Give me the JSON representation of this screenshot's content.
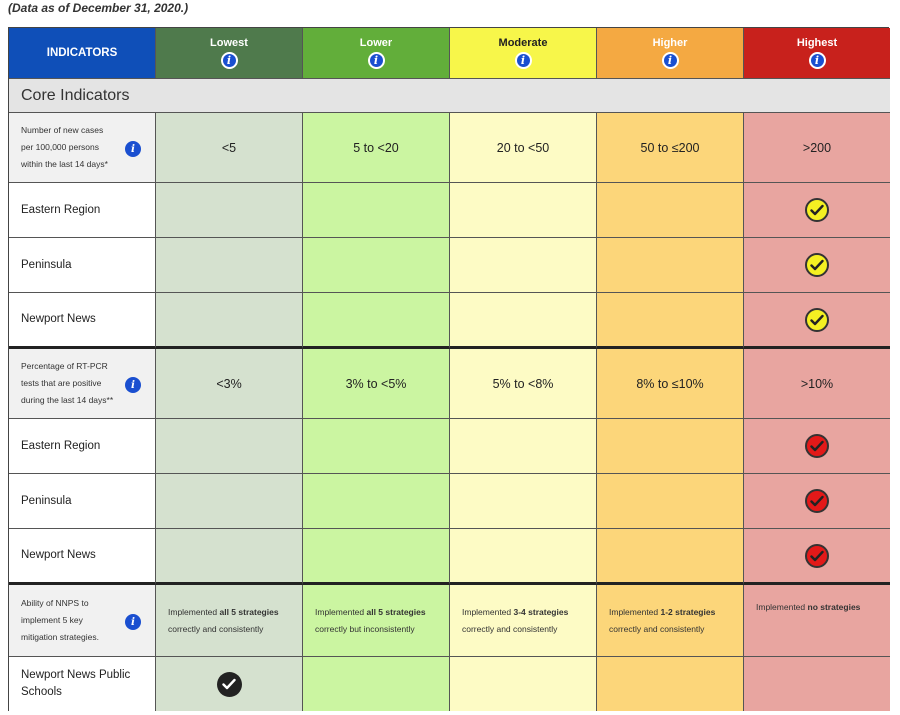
{
  "caption": "(Data as of December 31, 2020.)",
  "header": {
    "indicators": "INDICATORS",
    "levels": [
      "Lowest",
      "Lower",
      "Moderate",
      "Higher",
      "Highest"
    ],
    "info_symbol": "i"
  },
  "section_title": "Core Indicators",
  "indicator1": {
    "label_lines": [
      "Number of new cases",
      "per 100,000 persons",
      "within the last 14 days*"
    ],
    "thresholds": [
      "<5",
      "5 to <20",
      "20 to <50",
      "50 to ≤200",
      ">200"
    ]
  },
  "indicator1_regions": [
    "Eastern Region",
    "Peninsula",
    "Newport News"
  ],
  "indicator2": {
    "label_lines": [
      "Percentage of RT-PCR",
      "tests that are positive",
      "during the last 14 days**"
    ],
    "thresholds": [
      "<3%",
      "3% to <5%",
      "5% to <8%",
      "8% to ≤10%",
      ">10%"
    ]
  },
  "indicator2_regions": [
    "Eastern Region",
    "Peninsula",
    "Newport News"
  ],
  "indicator3": {
    "label_lines": [
      "Ability of NNPS to",
      "implement 5 key",
      "mitigation strategies."
    ],
    "strategies": [
      {
        "pre": "Implemented ",
        "bold": "all 5 strategies",
        "line2": "correctly and consistently"
      },
      {
        "pre": "Implemented ",
        "bold": "all 5 strategies",
        "line2": "correctly but inconsistently"
      },
      {
        "pre": "Implemented ",
        "bold": "3-4 strategies",
        "line2": "correctly and consistently"
      },
      {
        "pre": "Implemented ",
        "bold": "1-2 strategies",
        "line2": "correctly and consistently"
      },
      {
        "pre": "Implemented ",
        "bold": "no strategies",
        "line2": ""
      }
    ]
  },
  "indicator3_region_lines": [
    "Newport News Public",
    "Schools"
  ],
  "colors": {
    "indicators_header": "#0f4fb8",
    "lowest": "#4f7a4c",
    "lower": "#62ae3a",
    "moderate": "#f7f64a",
    "higher": "#f4a942",
    "highest": "#c8211c",
    "check_yellow": "#f4f022",
    "check_red": "#e31919",
    "check_dark": "#222222"
  },
  "icons": {
    "info": "info-icon",
    "check": "checkmark-circle-icon"
  }
}
